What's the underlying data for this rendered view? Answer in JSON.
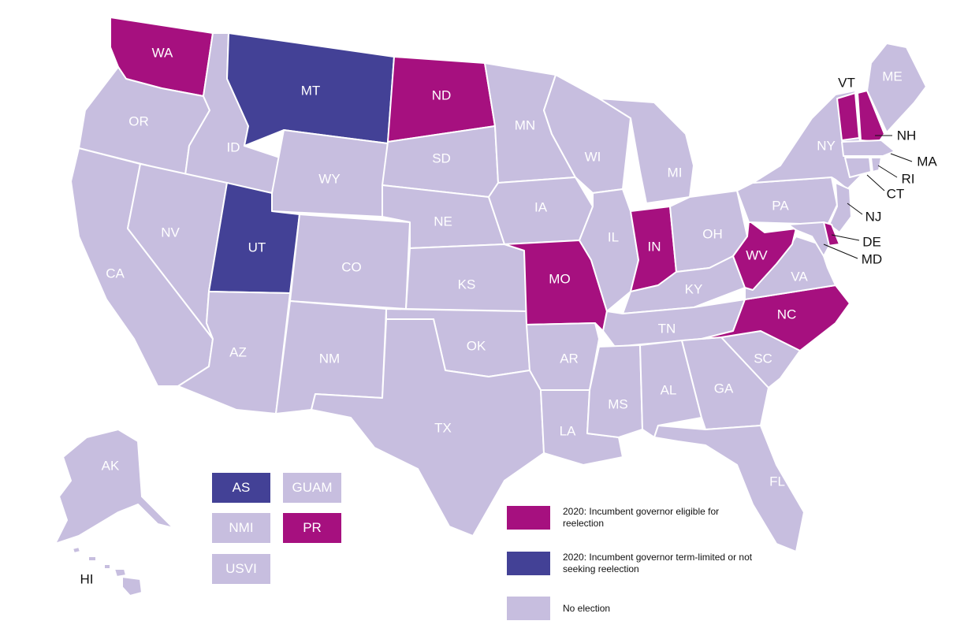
{
  "colors": {
    "eligible": "#a6107f",
    "term_limited": "#434196",
    "no_election": "#c7bedf"
  },
  "labels": {
    "WA": "WA",
    "OR": "OR",
    "CA": "CA",
    "ID": "ID",
    "NV": "NV",
    "MT": "MT",
    "WY": "WY",
    "UT": "UT",
    "AZ": "AZ",
    "CO": "CO",
    "NM": "NM",
    "ND": "ND",
    "SD": "SD",
    "NE": "NE",
    "KS": "KS",
    "OK": "OK",
    "TX": "TX",
    "MN": "MN",
    "IA": "IA",
    "MO": "MO",
    "AR": "AR",
    "LA": "LA",
    "WI": "WI",
    "IL": "IL",
    "MI": "MI",
    "IN": "IN",
    "OH": "OH",
    "KY": "KY",
    "TN": "TN",
    "MS": "MS",
    "AL": "AL",
    "GA": "GA",
    "FL": "FL",
    "SC": "SC",
    "NC": "NC",
    "VA": "VA",
    "WV": "WV",
    "PA": "PA",
    "NY": "NY",
    "VT": "VT",
    "NH": "NH",
    "ME": "ME",
    "MA": "MA",
    "RI": "RI",
    "CT": "CT",
    "NJ": "NJ",
    "DE": "DE",
    "MD": "MD",
    "AK": "AK",
    "HI": "HI"
  },
  "territories": {
    "AS": "AS",
    "GUAM": "GUAM",
    "NMI": "NMI",
    "PR": "PR",
    "USVI": "USVI"
  },
  "legend": {
    "eligible": "2020: Incumbent governor eligible for reelection",
    "term_limited": "2020: Incumbent governor term-limited or not seeking reelection",
    "no_election": "No election"
  }
}
